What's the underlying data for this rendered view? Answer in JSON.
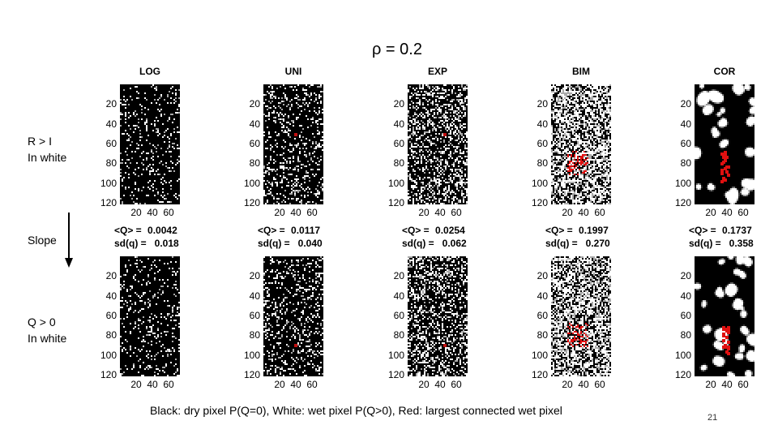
{
  "title": "ρ = 0.2",
  "side_labels": {
    "top": "R > I\nIn white",
    "middle": "Slope",
    "bottom": "Q > 0\nIn white"
  },
  "y_ticks": [
    "20",
    "40",
    "60",
    "80",
    "100",
    "120"
  ],
  "x_ticks": [
    "20",
    "40",
    "60"
  ],
  "columns": [
    {
      "name": "LOG",
      "mean_label": "<Q> =",
      "mean_value": "0.0042",
      "sd_label": "sd(q) =",
      "sd_value": "0.018",
      "white_density": 0.12,
      "red": false,
      "clustered": false
    },
    {
      "name": "UNI",
      "mean_label": "<Q> =",
      "mean_value": "0.0117",
      "sd_label": "sd(q) =",
      "sd_value": "0.040",
      "white_density": 0.2,
      "red": false,
      "clustered": false
    },
    {
      "name": "EXP",
      "mean_label": "<Q> =",
      "mean_value": "0.0254",
      "sd_label": "sd(q) =",
      "sd_value": "0.062",
      "white_density": 0.33,
      "red": false,
      "clustered": false
    },
    {
      "name": "BIM",
      "mean_label": "<Q> =",
      "mean_value": "0.1997",
      "sd_label": "sd(q) =",
      "sd_value": "0.270",
      "white_density": 0.6,
      "red": true,
      "clustered": false
    },
    {
      "name": "COR",
      "mean_label": "<Q> =",
      "mean_value": "0.1737",
      "sd_label": "sd(q) =",
      "sd_value": "0.358",
      "white_density": 0.42,
      "red": true,
      "clustered": true
    }
  ],
  "caption": "Black: dry pixel P(Q=0), White: wet pixel P(Q>0),  Red: largest connected wet pixel",
  "page_number": "21"
}
